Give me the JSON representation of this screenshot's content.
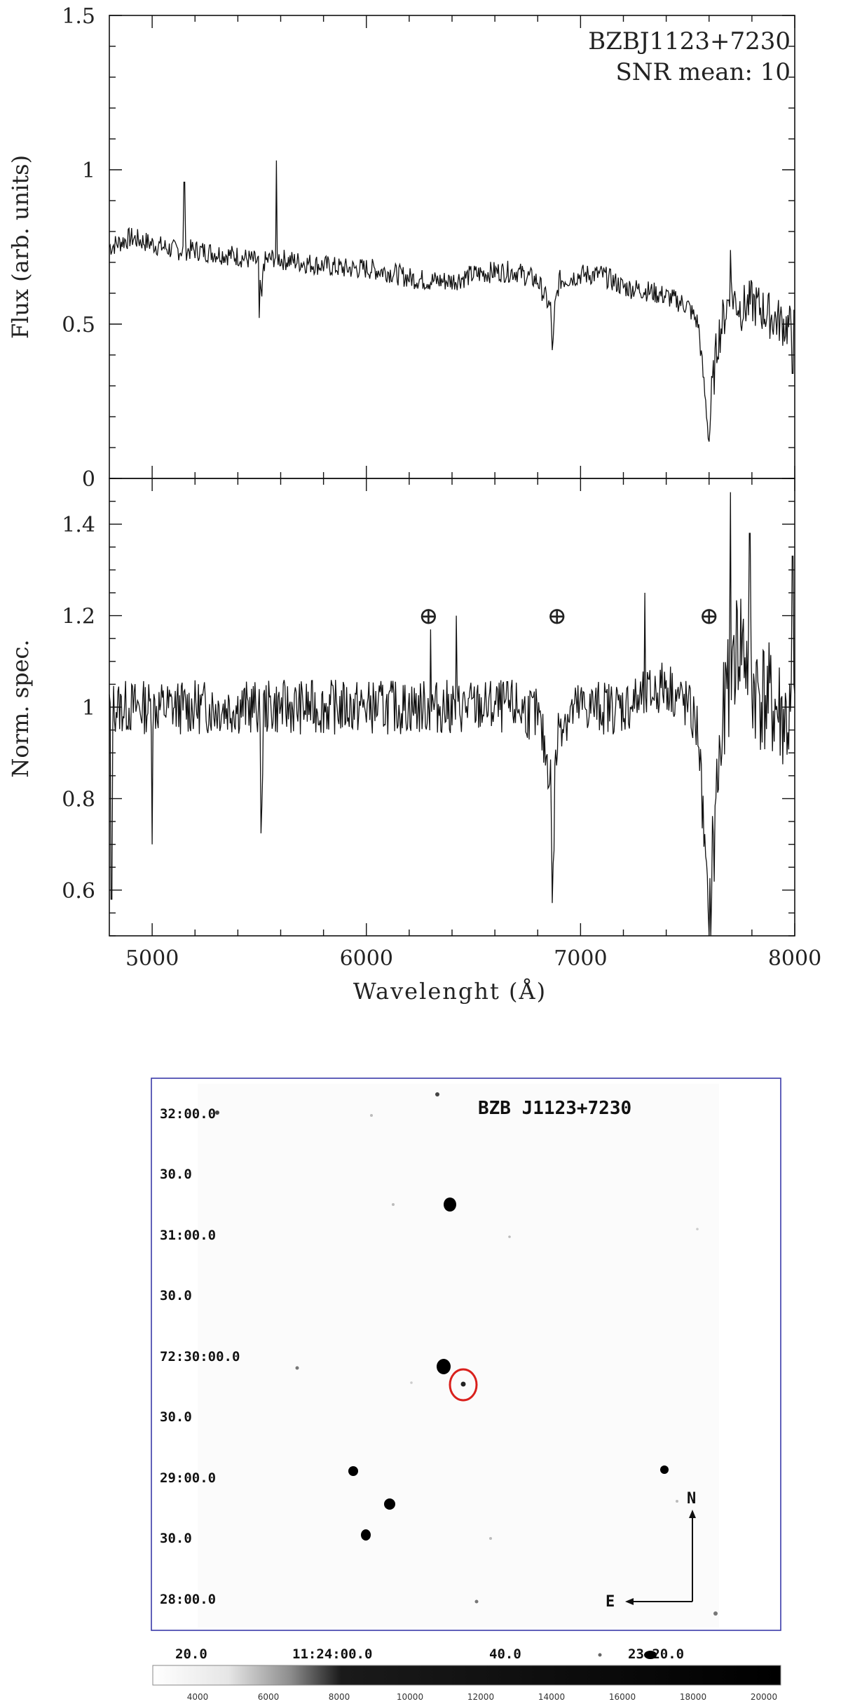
{
  "chart_data": [
    {
      "type": "line",
      "panel": "top",
      "annotations": [
        "BZBJ1123+7230",
        "SNR mean: 10"
      ],
      "ylabel": "Flux (arb. units)",
      "xlabel": "",
      "xlim": [
        4800,
        8000
      ],
      "ylim": [
        0,
        1.5
      ],
      "yticks": [
        0,
        0.5,
        1,
        1.5
      ],
      "ytick_labels": [
        "0",
        "0.5",
        "1",
        "1.5"
      ],
      "x": [
        4800,
        4900,
        5000,
        5100,
        5200,
        5300,
        5400,
        5500,
        5510,
        5520,
        5580,
        5600,
        5700,
        5800,
        5900,
        6000,
        6100,
        6200,
        6300,
        6400,
        6500,
        6600,
        6700,
        6800,
        6860,
        6870,
        6880,
        6900,
        7000,
        7100,
        7200,
        7300,
        7400,
        7500,
        7550,
        7590,
        7600,
        7610,
        7640,
        7700,
        7750,
        7800,
        7900,
        8000
      ],
      "y": [
        0.75,
        0.78,
        0.76,
        0.74,
        0.74,
        0.73,
        0.72,
        0.7,
        0.55,
        0.7,
        0.72,
        0.71,
        0.7,
        0.69,
        0.68,
        0.68,
        0.67,
        0.65,
        0.64,
        0.64,
        0.66,
        0.67,
        0.67,
        0.64,
        0.55,
        0.4,
        0.55,
        0.64,
        0.66,
        0.66,
        0.62,
        0.61,
        0.59,
        0.56,
        0.5,
        0.2,
        0.12,
        0.25,
        0.45,
        0.6,
        0.55,
        0.57,
        0.52,
        0.48
      ],
      "spikes": [
        [
          5150,
          0.96
        ],
        [
          5580,
          1.03
        ],
        [
          5500,
          0.52
        ],
        [
          7700,
          0.74
        ],
        [
          7990,
          0.34
        ]
      ]
    },
    {
      "type": "line",
      "panel": "bottom",
      "ylabel": "Norm. spec.",
      "xlabel": "Wavelenght (Å)",
      "xlim": [
        4800,
        8000
      ],
      "ylim": [
        0.5,
        1.5
      ],
      "xticks": [
        5000,
        6000,
        7000,
        8000
      ],
      "xtick_labels": [
        "5000",
        "6000",
        "7000",
        "8000"
      ],
      "yticks": [
        0.6,
        0.8,
        1,
        1.2,
        1.4
      ],
      "ytick_labels": [
        "0.6",
        "0.8",
        "1",
        "1.2",
        "1.4"
      ],
      "telluric_symbols": [
        {
          "x": 6290,
          "y": 1.2,
          "label": "⊕"
        },
        {
          "x": 6890,
          "y": 1.2,
          "label": "⊕"
        },
        {
          "x": 7600,
          "y": 1.2,
          "label": "⊕"
        }
      ],
      "x": [
        4800,
        4900,
        5000,
        5100,
        5200,
        5300,
        5400,
        5500,
        5510,
        5520,
        5600,
        5700,
        5800,
        5900,
        6000,
        6100,
        6200,
        6300,
        6400,
        6500,
        6600,
        6700,
        6800,
        6860,
        6870,
        6880,
        6900,
        7000,
        7100,
        7200,
        7300,
        7400,
        7500,
        7550,
        7590,
        7600,
        7610,
        7640,
        7700,
        7750,
        7800,
        7900,
        8000
      ],
      "y": [
        1.0,
        1.0,
        1.0,
        1.0,
        1.0,
        1.0,
        1.0,
        1.0,
        0.72,
        1.0,
        1.0,
        1.0,
        1.0,
        1.0,
        1.0,
        1.0,
        1.0,
        1.0,
        1.0,
        1.0,
        1.0,
        1.0,
        0.98,
        0.85,
        0.55,
        0.85,
        0.97,
        1.0,
        1.0,
        1.0,
        1.02,
        1.05,
        1.0,
        0.95,
        0.6,
        0.5,
        0.6,
        0.85,
        1.1,
        1.15,
        1.05,
        1.0,
        0.95
      ],
      "spikes": [
        [
          4810,
          0.58
        ],
        [
          5000,
          0.7
        ],
        [
          6420,
          1.2
        ],
        [
          6300,
          1.17
        ],
        [
          7300,
          1.25
        ],
        [
          7700,
          1.47
        ],
        [
          7790,
          1.38
        ],
        [
          7990,
          1.33
        ]
      ]
    }
  ],
  "finder": {
    "title": "BZB J1123+7230",
    "dec_labels": [
      "32:00.0",
      "30.0",
      "31:00.0",
      "30.0",
      "72:30:00.0",
      "30.0",
      "29:00.0",
      "30.0",
      "28:00.0"
    ],
    "ra_labels": [
      "20.0",
      "11:24:00.0",
      "40.0",
      "23:20.0"
    ],
    "compass_north": "N",
    "compass_east": "E",
    "colorbar_labels": [
      "4000",
      "6000",
      "8000",
      "10000",
      "12000",
      "14000",
      "16000",
      "18000",
      "20000"
    ],
    "target_marker_color": "#d9201c",
    "frame_color": "#3a3aa8"
  }
}
